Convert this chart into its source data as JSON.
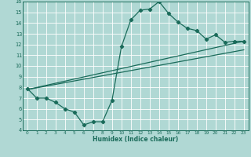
{
  "xlabel": "Humidex (Indice chaleur)",
  "bg_color": "#b0d8d4",
  "grid_color": "#ffffff",
  "line_color": "#1a6b5a",
  "xlim": [
    -0.5,
    23.5
  ],
  "ylim": [
    4,
    16
  ],
  "xticks": [
    0,
    1,
    2,
    3,
    4,
    5,
    6,
    7,
    8,
    9,
    10,
    11,
    12,
    13,
    14,
    15,
    16,
    17,
    18,
    19,
    20,
    21,
    22,
    23
  ],
  "yticks": [
    4,
    5,
    6,
    7,
    8,
    9,
    10,
    11,
    12,
    13,
    14,
    15,
    16
  ],
  "line1_x": [
    0,
    1,
    2,
    3,
    4,
    5,
    6,
    7,
    8,
    9,
    10,
    11,
    12,
    13,
    14,
    15,
    16,
    17,
    18,
    19,
    20,
    21,
    22,
    23
  ],
  "line1_y": [
    7.9,
    7.0,
    7.0,
    6.6,
    6.0,
    5.7,
    4.5,
    4.8,
    4.8,
    6.8,
    11.8,
    14.3,
    15.2,
    15.3,
    16.0,
    14.9,
    14.1,
    13.5,
    13.3,
    12.5,
    12.9,
    12.2,
    12.3,
    12.3
  ],
  "trend1_x": [
    0,
    23
  ],
  "trend1_y": [
    7.8,
    12.3
  ],
  "trend2_x": [
    0,
    23
  ],
  "trend2_y": [
    7.8,
    11.5
  ],
  "marker": "D",
  "markersize": 2.2,
  "linewidth": 0.9
}
